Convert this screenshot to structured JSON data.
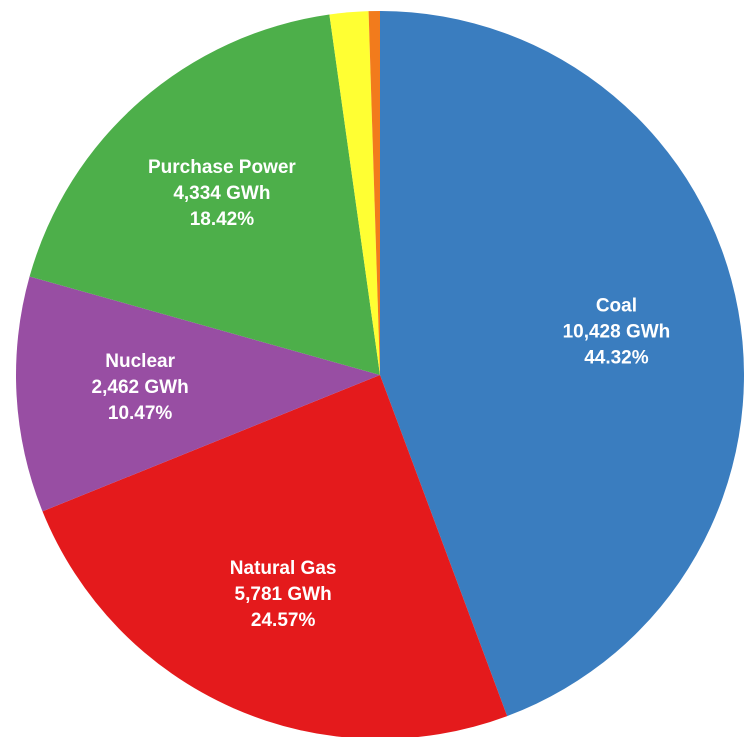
{
  "chart_data": {
    "type": "pie",
    "categories": [
      "Coal",
      "Natural Gas",
      "Nuclear",
      "Purchase Power",
      null,
      null
    ],
    "values": [
      44.32,
      24.57,
      10.47,
      18.42,
      1.72,
      0.5
    ],
    "value_labels": [
      "44.32%",
      "24.57%",
      "10.47%",
      "18.42%",
      null,
      null
    ],
    "energy": [
      10428,
      5781,
      2462,
      4334,
      null,
      null
    ],
    "energy_labels": [
      "10,428 GWh",
      "5,781 GWh",
      "2,462 GWh",
      "4,334 GWh",
      null,
      null
    ],
    "colors": [
      "#3a7dbf",
      "#e41a1c",
      "#984ea3",
      "#4daf4a",
      "#ffff33",
      "#f27b1c"
    ]
  }
}
